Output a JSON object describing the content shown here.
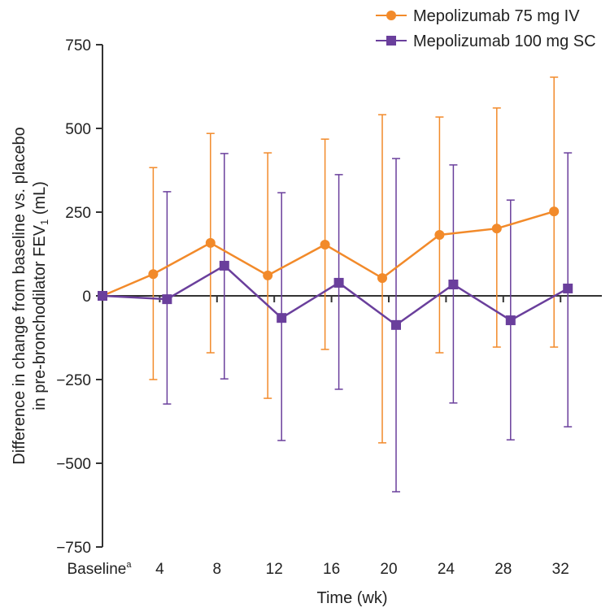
{
  "chart_data": {
    "type": "line",
    "xlabel": "Time (wk)",
    "ylabel_line1": "Difference in change from baseline vs. placebo",
    "ylabel_line2": "in pre-bronchodilator FEV",
    "ylabel_sub": "1",
    "ylabel_unit": " (mL)",
    "categories": [
      "Baseline",
      "4",
      "8",
      "12",
      "16",
      "20",
      "24",
      "28",
      "32"
    ],
    "baseline_superscript": "a",
    "x_weeks": [
      0,
      4,
      8,
      12,
      16,
      20,
      24,
      28,
      32
    ],
    "ylim": [
      -750,
      750
    ],
    "yticks": [
      750,
      500,
      250,
      0,
      -250,
      -500,
      -750
    ],
    "ytick_labels": [
      "750",
      "500",
      "250",
      "0",
      "−250",
      "−500",
      "−750"
    ],
    "legend_position": "top-right",
    "series": [
      {
        "name": "Mepolizumab 75 mg IV",
        "color": "#F28A2A",
        "marker": "circle",
        "values": [
          0,
          65,
          158,
          61,
          153,
          53,
          182,
          201,
          252
        ],
        "ci_upper": [
          null,
          383,
          485,
          427,
          468,
          541,
          534,
          561,
          653
        ],
        "ci_lower": [
          null,
          -250,
          -170,
          -306,
          -160,
          -439,
          -170,
          -153,
          -153
        ]
      },
      {
        "name": "Mepolizumab 100 mg SC",
        "color": "#6A3F9C",
        "marker": "square",
        "values": [
          0,
          -10,
          90,
          -66,
          39,
          -87,
          34,
          -73,
          22
        ],
        "ci_upper": [
          null,
          311,
          425,
          308,
          362,
          410,
          391,
          286,
          427
        ],
        "ci_lower": [
          null,
          -323,
          -248,
          -432,
          -279,
          -585,
          -320,
          -430,
          -391
        ]
      }
    ]
  }
}
